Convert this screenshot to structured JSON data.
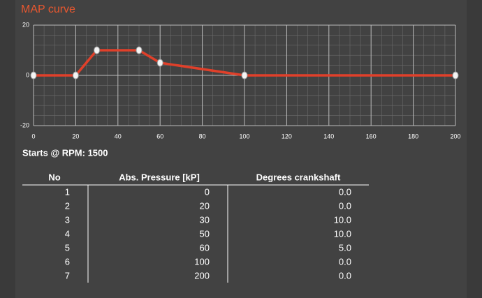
{
  "title": "MAP curve",
  "chart_data": {
    "type": "line",
    "x": [
      0,
      20,
      30,
      50,
      60,
      100,
      200
    ],
    "values": [
      0,
      0,
      10,
      10,
      5,
      0,
      0
    ],
    "color": "#e0402a",
    "xlim": [
      0,
      200
    ],
    "xticks": [
      0,
      20,
      40,
      60,
      80,
      100,
      120,
      140,
      160,
      180,
      200
    ],
    "ylim": [
      -20,
      20
    ],
    "yticks": [
      -20,
      0,
      20
    ],
    "grid": true
  },
  "rpm_label": "Starts @ RPM: 1500",
  "table": {
    "header": [
      "No",
      "Abs. Pressure [kP]",
      "Degrees crankshaft"
    ],
    "rows": [
      [
        1,
        0,
        "0.0"
      ],
      [
        2,
        20,
        "0.0"
      ],
      [
        3,
        30,
        "10.0"
      ],
      [
        4,
        50,
        "10.0"
      ],
      [
        5,
        60,
        "5.0"
      ],
      [
        6,
        100,
        "0.0"
      ],
      [
        7,
        200,
        "0.0"
      ]
    ]
  }
}
